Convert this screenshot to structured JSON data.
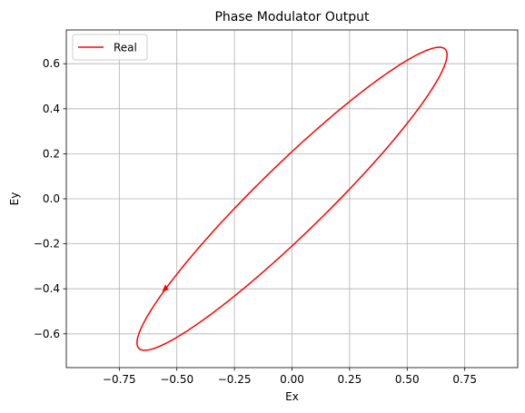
{
  "chart_data": {
    "type": "line",
    "title": "Phase Modulator Output",
    "xlabel": "Ex",
    "ylabel": "Ey",
    "xlim": [
      -0.98,
      0.98
    ],
    "ylim": [
      -0.75,
      0.75
    ],
    "xticks": [
      -0.75,
      -0.5,
      -0.25,
      0.0,
      0.25,
      0.5,
      0.75
    ],
    "xtick_labels": [
      "−0.75",
      "−0.50",
      "−0.25",
      "0.00",
      "0.25",
      "0.50",
      "0.75"
    ],
    "yticks": [
      -0.6,
      -0.4,
      -0.2,
      0.0,
      0.2,
      0.4,
      0.6
    ],
    "ytick_labels": [
      "−0.6",
      "−0.4",
      "−0.2",
      "0.0",
      "0.2",
      "0.4",
      "0.6"
    ],
    "grid": true,
    "legend": "upper-left",
    "series": [
      {
        "name": "Real",
        "color": "#ff0000",
        "shape": "ellipse",
        "center": [
          0.0,
          0.0
        ],
        "major_axis_angle_deg": 45,
        "semi_major": 0.94,
        "semi_minor": 0.15,
        "x_extent": [
          -0.67,
          0.67
        ],
        "y_extent": [
          -0.67,
          0.67
        ],
        "arrow_at": [
          -0.55,
          -0.4
        ]
      }
    ]
  }
}
